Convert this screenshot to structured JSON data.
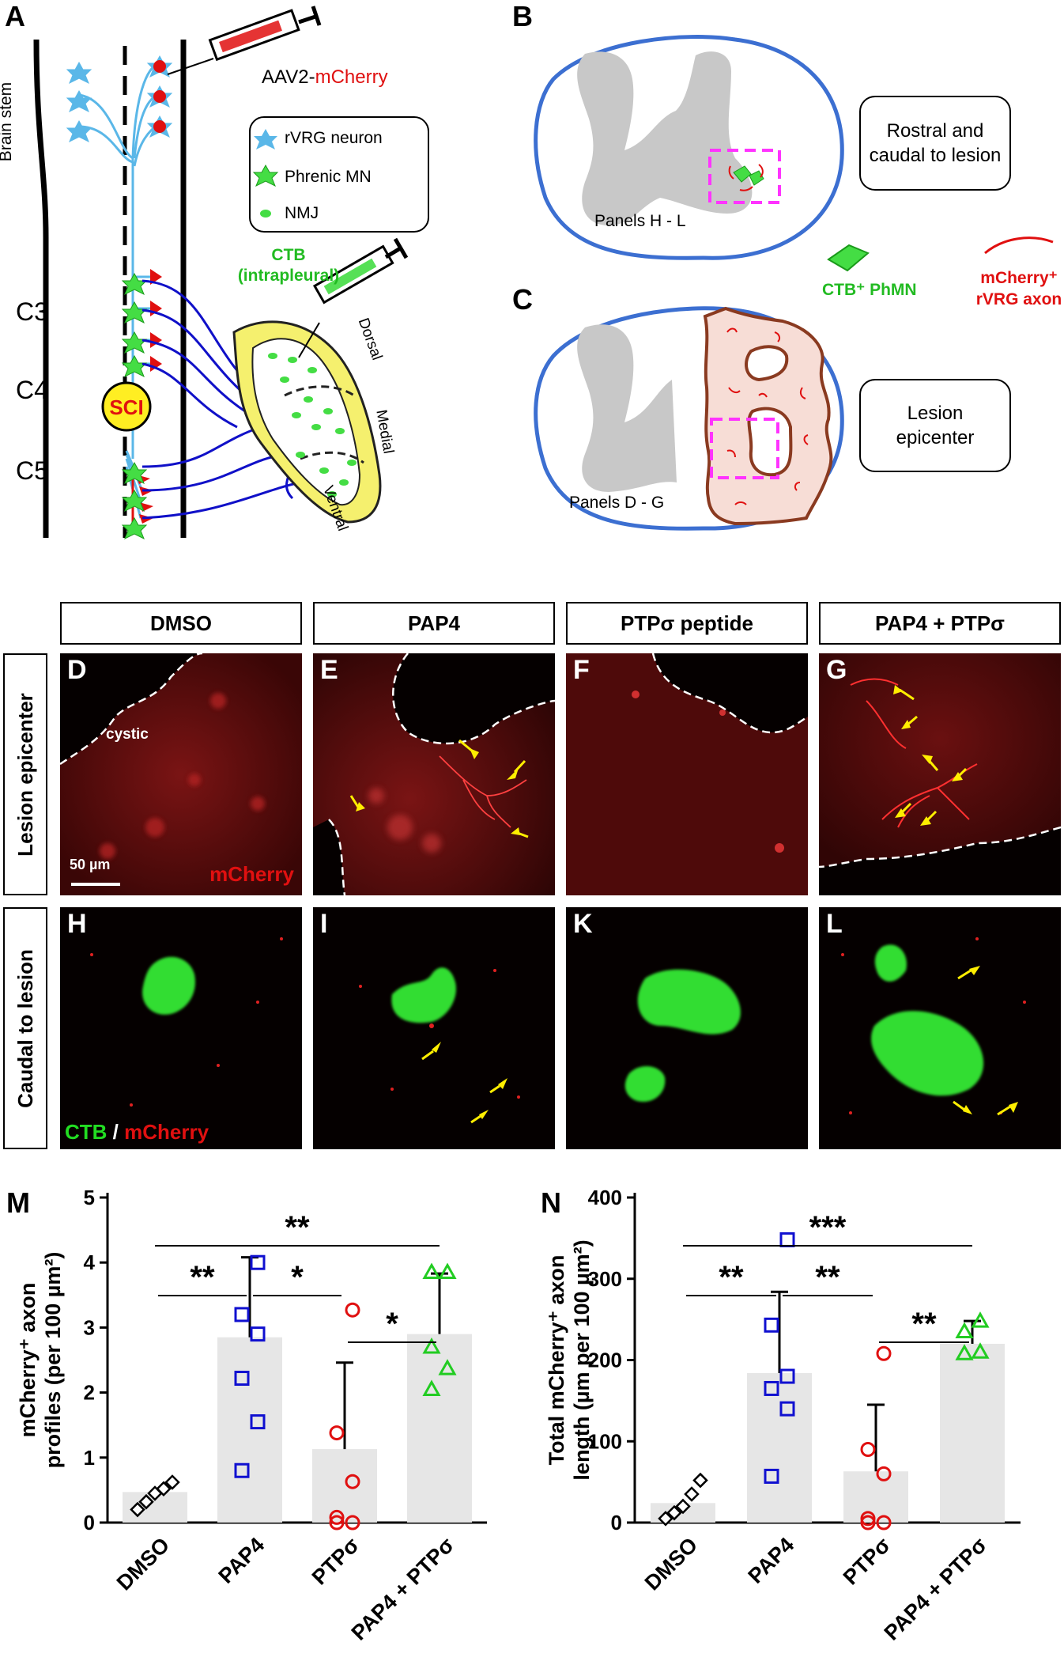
{
  "panels": {
    "A": {
      "label": "A",
      "brain_stem": "Brain stem",
      "levels": [
        "C3",
        "C4",
        "C5"
      ],
      "sci": "SCI",
      "virus_prefix": "AAV2-",
      "virus_marker": "mCherry",
      "legend": [
        "rVRG neuron",
        "Phrenic MN",
        "NMJ"
      ],
      "ctb_line1": "CTB",
      "ctb_line2": "(intrapleural)",
      "diaphragm": [
        "Dorsal",
        "Medial",
        "Ventral"
      ]
    },
    "B": {
      "label": "B",
      "caption": "Panels H - L",
      "box_line1": "Rostral and",
      "box_line2": "caudal to lesion"
    },
    "C": {
      "label": "C",
      "caption": "Panels D - G",
      "box_line1": "Lesion",
      "box_line2": "epicenter"
    },
    "key": {
      "ctb": "CTB⁺ PhMN",
      "mcherry_line1": "mCherry⁺",
      "mcherry_line2": "rVRG axon"
    }
  },
  "columns": [
    "DMSO",
    "PAP4",
    "PTPσ peptide",
    "PAP4 + PTPσ"
  ],
  "rows": [
    "Lesion epicenter",
    "Caudal to lesion"
  ],
  "micrographs": {
    "top_labels": [
      "D",
      "E",
      "F",
      "G"
    ],
    "bottom_labels": [
      "H",
      "I",
      "K",
      "L"
    ],
    "cystic": "cystic",
    "scale_bar": "50 µm",
    "channel_top": "mCherry",
    "channel_bottom_green": "CTB",
    "channel_bottom_sep": " / ",
    "channel_bottom_red": "mCherry"
  },
  "colors": {
    "blue": "#1010d0",
    "red": "#e01010",
    "green": "#22cc22",
    "bar": "#e6e6e6",
    "outline": "#3c6fd1"
  },
  "chart_data": [
    {
      "panel": "M",
      "type": "bar",
      "ylabel_line1": "mCherry⁺ axon",
      "ylabel_line2": "profiles (per 100 µm²)",
      "categories": [
        "DMSO",
        "PAP4",
        "PTPσ",
        "PAP4 + PTPσ"
      ],
      "values": [
        0.47,
        2.85,
        1.13,
        2.9
      ],
      "errors": [
        0,
        1.23,
        1.33,
        0.93
      ],
      "points": [
        [
          0.2,
          0.32,
          0.45,
          0.52,
          0.62
        ],
        [
          0.8,
          1.55,
          2.22,
          2.9,
          3.2,
          4.0
        ],
        [
          0,
          0,
          0.08,
          0.63,
          1.38,
          3.27
        ],
        [
          2.05,
          2.37,
          2.7,
          3.85,
          3.85
        ]
      ],
      "markers": [
        "diamond",
        "square",
        "circle",
        "triangle"
      ],
      "marker_colors": [
        "#000000",
        "#1010d0",
        "#e01010",
        "#22cc22"
      ],
      "ylim": [
        0,
        5
      ],
      "yticks": [
        0,
        1,
        2,
        3,
        4,
        5
      ],
      "significance": [
        {
          "from": 0,
          "to": 3,
          "label": "**"
        },
        {
          "from": 0,
          "to": 1,
          "label": "**"
        },
        {
          "from": 1,
          "to": 2,
          "label": "*"
        },
        {
          "from": 2,
          "to": 3,
          "label": "*"
        }
      ]
    },
    {
      "panel": "N",
      "type": "bar",
      "ylabel_line1": "Total mCherry⁺ axon",
      "ylabel_line2": "length (µm per 100 µm²)",
      "categories": [
        "DMSO",
        "PAP4",
        "PTPσ",
        "PAP4 + PTPσ"
      ],
      "values": [
        24,
        184,
        63,
        220
      ],
      "errors": [
        0,
        100,
        82,
        28
      ],
      "points": [
        [
          5,
          12,
          20,
          35,
          52
        ],
        [
          57,
          140,
          165,
          180,
          243,
          348
        ],
        [
          0,
          0,
          5,
          60,
          90,
          208
        ],
        [
          208,
          210,
          235,
          248
        ]
      ],
      "markers": [
        "diamond",
        "square",
        "circle",
        "triangle"
      ],
      "marker_colors": [
        "#000000",
        "#1010d0",
        "#e01010",
        "#22cc22"
      ],
      "ylim": [
        0,
        400
      ],
      "yticks": [
        0,
        100,
        200,
        300,
        400
      ],
      "significance": [
        {
          "from": 0,
          "to": 3,
          "label": "***"
        },
        {
          "from": 0,
          "to": 1,
          "label": "**"
        },
        {
          "from": 1,
          "to": 2,
          "label": "**"
        },
        {
          "from": 2,
          "to": 3,
          "label": "**"
        }
      ]
    }
  ]
}
